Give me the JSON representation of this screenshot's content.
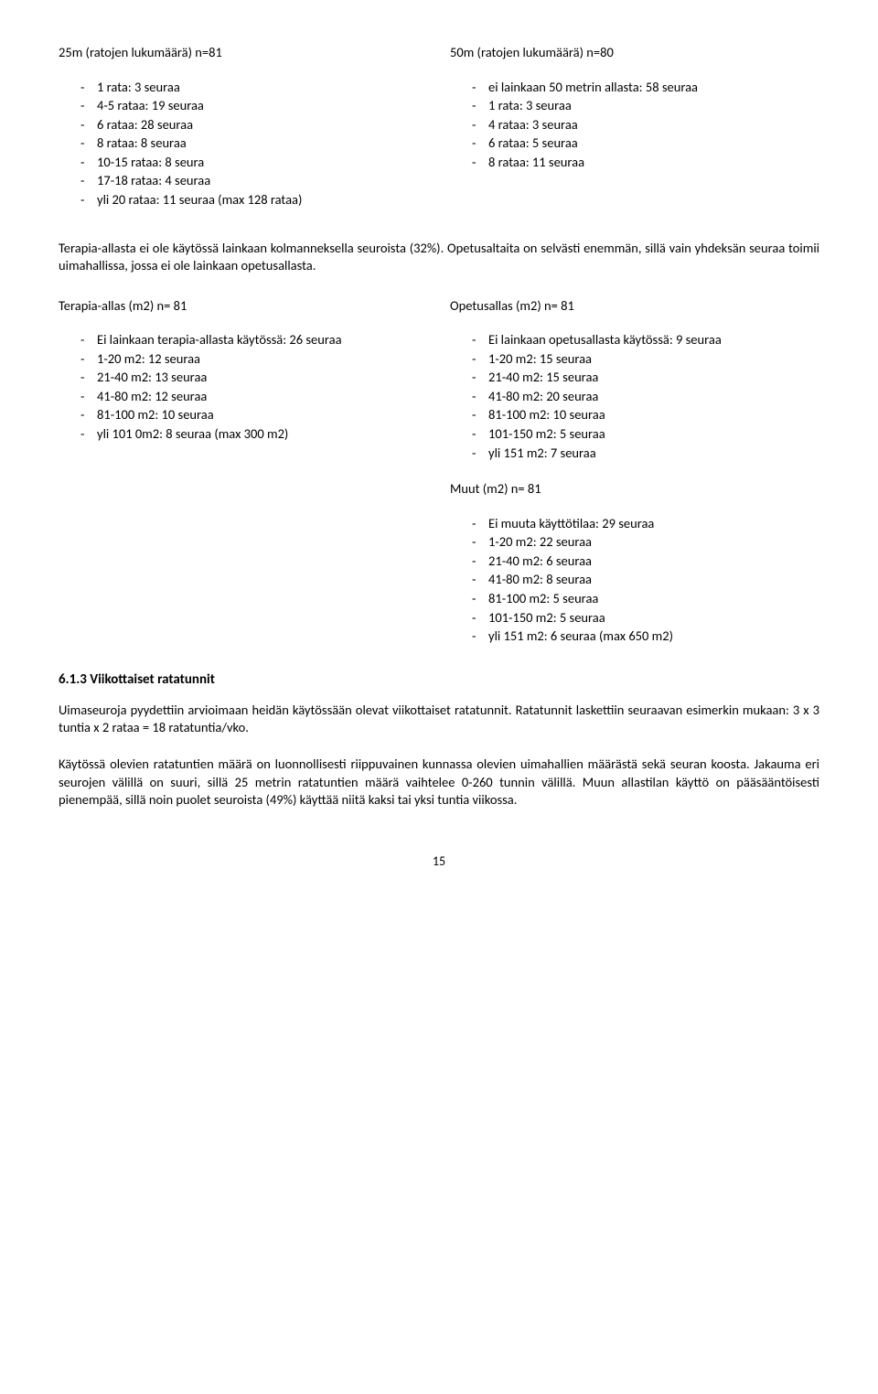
{
  "top": {
    "left": {
      "title": "25m (ratojen lukumäärä) n=81",
      "items": [
        "1 rata: 3 seuraa",
        "4-5 rataa: 19 seuraa",
        "6 rataa: 28 seuraa",
        "8 rataa: 8 seuraa",
        "10-15 rataa: 8 seura",
        "17-18 rataa: 4 seuraa",
        "yli 20 rataa: 11 seuraa (max 128 rataa)"
      ]
    },
    "right": {
      "title": "50m (ratojen lukumäärä) n=80",
      "items": [
        "ei lainkaan 50 metrin allasta: 58 seuraa",
        "1 rata: 3 seuraa",
        "4 rataa: 3 seuraa",
        "6 rataa: 5 seuraa",
        "8 rataa: 11 seuraa"
      ]
    }
  },
  "para1": "Terapia-allasta ei ole käytössä lainkaan kolmanneksella seuroista (32%). Opetusaltaita on selvästi enemmän, sillä vain yhdeksän seuraa toimii uimahallissa, jossa ei ole lainkaan opetusallasta.",
  "mid": {
    "left": {
      "title": "Terapia-allas (m2) n= 81",
      "items": [
        "Ei lainkaan terapia-allasta käytössä: 26 seuraa",
        "1-20 m2: 12 seuraa",
        "21-40 m2: 13 seuraa",
        "41-80 m2: 12 seuraa",
        "81-100 m2: 10 seuraa",
        "yli 101 0m2: 8 seuraa (max 300 m2)"
      ]
    },
    "right": {
      "title": "Opetusallas (m2) n= 81",
      "items": [
        "Ei lainkaan opetusallasta käytössä: 9 seuraa",
        "1-20 m2: 15 seuraa",
        "21-40 m2: 15 seuraa",
        "41-80 m2: 20 seuraa",
        "81-100 m2: 10 seuraa",
        "101-150 m2: 5 seuraa",
        "yli 151 m2: 7 seuraa"
      ]
    },
    "rightSub": {
      "title": "Muut (m2) n= 81",
      "items": [
        "Ei muuta käyttötilaa: 29 seuraa",
        "1-20 m2: 22 seuraa",
        "21-40 m2: 6 seuraa",
        "41-80 m2: 8 seuraa",
        "81-100 m2: 5 seuraa",
        "101-150 m2: 5 seuraa",
        "yli 151 m2: 6 seuraa (max 650 m2)"
      ]
    }
  },
  "sectionHeading": "6.1.3   Viikottaiset ratatunnit",
  "para2": "Uimaseuroja pyydettiin arvioimaan heidän käytössään olevat viikottaiset ratatunnit. Ratatunnit laskettiin seuraavan esimerkin mukaan:  3 x 3 tuntia x 2 rataa = 18 ratatuntia/vko.",
  "para3": "Käytössä olevien ratatuntien määrä on luonnollisesti riippuvainen kunnassa olevien uimahallien määrästä sekä seuran koosta. Jakauma eri seurojen välillä on suuri, sillä 25 metrin ratatuntien määrä vaihtelee 0-260 tunnin välillä. Muun allastilan käyttö on pääsääntöisesti pienempää, sillä noin puolet seuroista (49%) käyttää niitä kaksi tai yksi tuntia viikossa.",
  "pageNumber": "15"
}
